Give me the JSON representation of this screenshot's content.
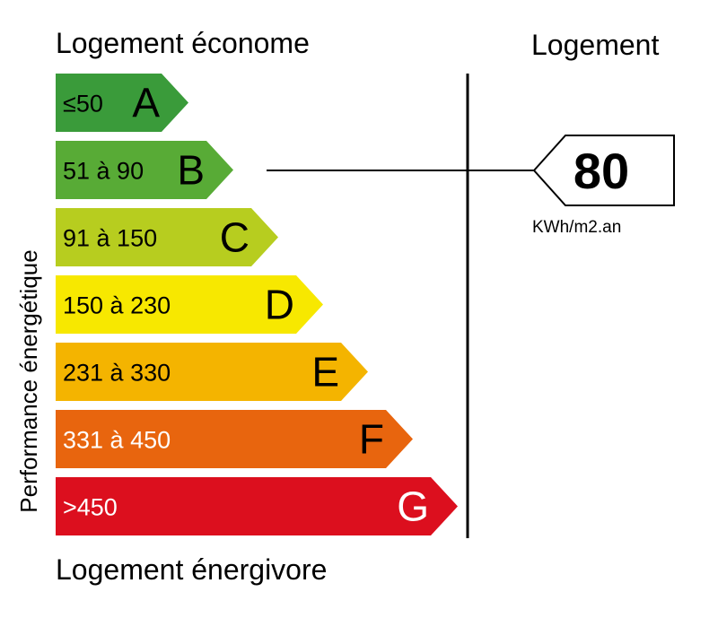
{
  "header": {
    "top_label": "Logement économe",
    "bottom_label": "Logement énergivore",
    "side_label": "Performance énergétique",
    "column_title": "Logement"
  },
  "classes": [
    {
      "letter": "A",
      "range": "≤50",
      "color": "#3a9b3a",
      "letter_color": "#000000",
      "range_color": "#000000"
    },
    {
      "letter": "B",
      "range": "51 à 90",
      "color": "#58ab36",
      "letter_color": "#000000",
      "range_color": "#000000"
    },
    {
      "letter": "C",
      "range": "91 à 150",
      "color": "#b7cd1f",
      "letter_color": "#000000",
      "range_color": "#000000"
    },
    {
      "letter": "D",
      "range": "150 à 230",
      "color": "#f7e800",
      "letter_color": "#000000",
      "range_color": "#000000"
    },
    {
      "letter": "E",
      "range": "231 à 330",
      "color": "#f4b400",
      "letter_color": "#000000",
      "range_color": "#000000"
    },
    {
      "letter": "F",
      "range": "331 à 450",
      "color": "#e8650e",
      "letter_color": "#000000",
      "range_color": "#ffffff"
    },
    {
      "letter": "G",
      "range": ">450",
      "color": "#dc0f1e",
      "letter_color": "#ffffff",
      "range_color": "#ffffff"
    }
  ],
  "result": {
    "value": "80",
    "unit": "KWh/m2.an",
    "class_letter": "B"
  }
}
